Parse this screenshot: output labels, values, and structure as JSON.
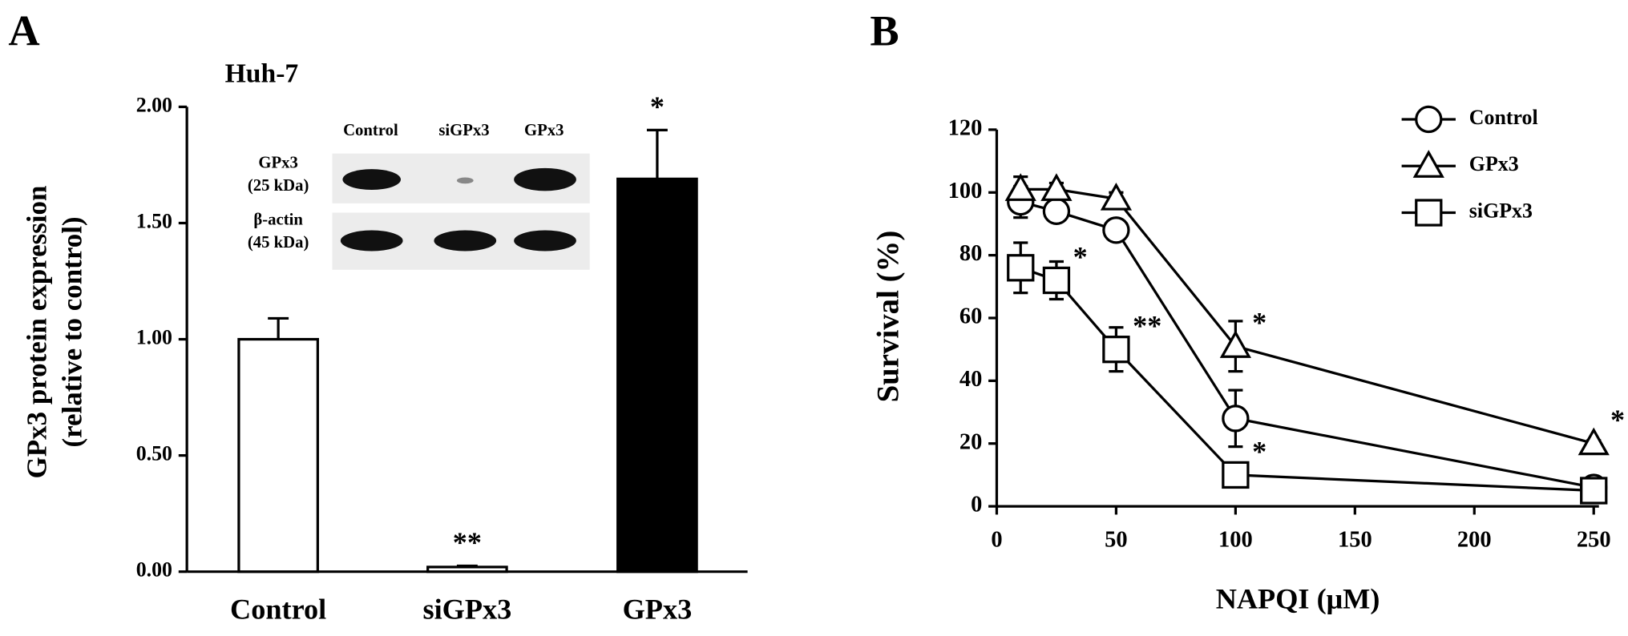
{
  "chart_data": [
    {
      "type": "bar",
      "panel": "A",
      "title": "Huh-7",
      "ylabel": [
        "GPx3 protein expression",
        "(relative to control)"
      ],
      "categories": [
        "Control",
        "siGPx3",
        "GPx3"
      ],
      "values": [
        1.0,
        0.02,
        1.69
      ],
      "errors": [
        0.09,
        0.005,
        0.21
      ],
      "colors": [
        "#ffffff",
        "#ffffff",
        "#000000"
      ],
      "ylim": [
        0,
        2
      ],
      "yticks": [
        {
          "value": 0,
          "label": "0.00"
        },
        {
          "value": 0.5,
          "label": "0.50"
        },
        {
          "value": 1,
          "label": "1.00"
        },
        {
          "value": 1.5,
          "label": "1.50"
        },
        {
          "value": 2,
          "label": "2.00"
        }
      ],
      "annotations": [
        {
          "text": "**",
          "category": "siGPx3"
        },
        {
          "text": "*",
          "category": "GPx3"
        }
      ],
      "inset": {
        "lanes": [
          "Control",
          "siGPx3",
          "GPx3"
        ],
        "rows": [
          [
            "GPx3",
            "(25 kDa)"
          ],
          [
            "β-actin",
            "(45 kDa)"
          ]
        ]
      }
    },
    {
      "type": "line",
      "panel": "B",
      "xlabel": "NAPQI (μM)",
      "ylabel": "Survival (%)",
      "x": [
        10,
        25,
        50,
        100,
        250
      ],
      "series": [
        {
          "name": "Control",
          "color": "#000000",
          "marker": "circle",
          "values": [
            97,
            94,
            88,
            28,
            6
          ],
          "errors": [
            5,
            3,
            2,
            9,
            2
          ]
        },
        {
          "name": "GPx3",
          "color": "#000000",
          "marker": "triangle",
          "values": [
            101,
            101,
            98,
            51,
            20
          ],
          "errors": [
            4,
            2,
            2,
            8,
            1
          ]
        },
        {
          "name": "siGPx3",
          "color": "#000000",
          "marker": "square",
          "values": [
            76,
            72,
            50,
            10,
            5
          ],
          "errors": [
            8,
            6,
            7,
            2,
            3
          ]
        }
      ],
      "xlim": [
        0,
        250
      ],
      "xticks": [
        0,
        50,
        100,
        150,
        200,
        250
      ],
      "ylim": [
        0,
        120
      ],
      "yticks": [
        0,
        20,
        40,
        60,
        80,
        100,
        120
      ],
      "annotations": [
        {
          "text": "*",
          "x": 25,
          "y": 72
        },
        {
          "text": "**",
          "x": 50,
          "y": 50
        },
        {
          "text": "*",
          "x": 100,
          "y": 10
        },
        {
          "text": "*",
          "x": 100,
          "y": 51
        },
        {
          "text": "*",
          "x": 250,
          "y": 20
        }
      ]
    }
  ]
}
